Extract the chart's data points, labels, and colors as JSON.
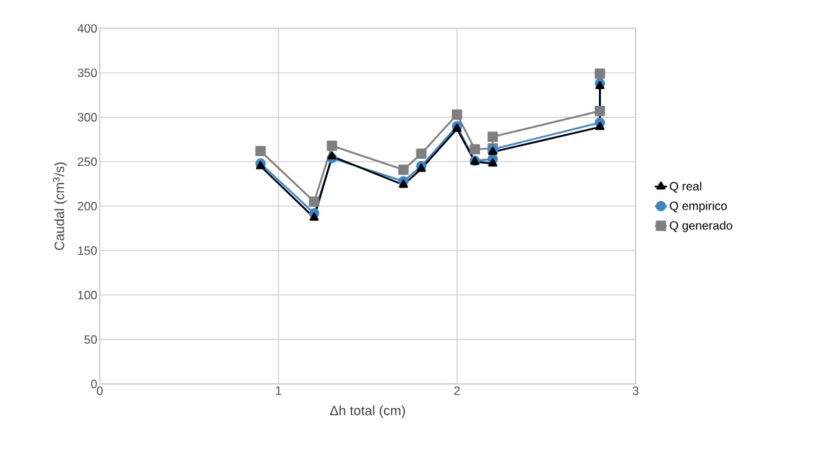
{
  "chart_data": {
    "type": "line",
    "xlabel": "Δh total (cm)",
    "ylabel": "Caudal (cm$^{3}$/s)",
    "xlim": [
      0,
      3
    ],
    "xticks": [
      0,
      1,
      2,
      3
    ],
    "ylim": [
      0,
      400
    ],
    "yticks": [
      0,
      50,
      100,
      150,
      200,
      250,
      300,
      350,
      400
    ],
    "grid": true,
    "legend": "right",
    "x": [
      0.9,
      1.2,
      1.3,
      1.7,
      1.8,
      2.0,
      2.1,
      2.2,
      2.2,
      2.8,
      2.8
    ],
    "series": [
      {
        "name": "Q real",
        "color": "#000000",
        "marker": "triangle",
        "values": [
          245,
          187,
          256,
          224,
          242,
          287,
          250,
          248,
          261,
          289,
          335
        ]
      },
      {
        "name": "Q empirico",
        "color": "#3a87c8",
        "marker": "circle",
        "values": [
          248,
          192,
          254,
          228,
          245,
          290,
          251,
          253,
          264,
          294,
          338
        ]
      },
      {
        "name": "Q generado",
        "color": "#7f7f7f",
        "marker": "square",
        "values": [
          262,
          205,
          268,
          241,
          259,
          303,
          264,
          265,
          278,
          307,
          349
        ]
      }
    ]
  }
}
